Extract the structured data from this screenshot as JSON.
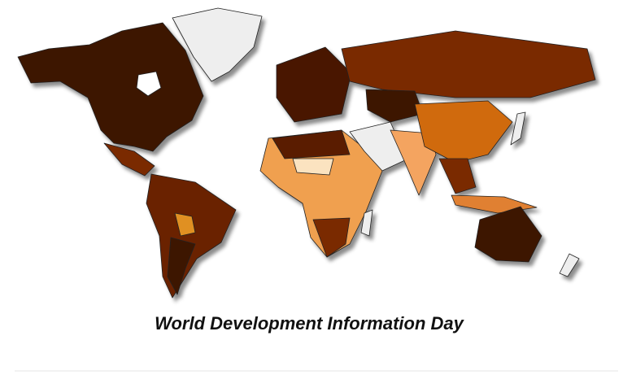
{
  "map": {
    "title": "World Development Information Day"
  }
}
